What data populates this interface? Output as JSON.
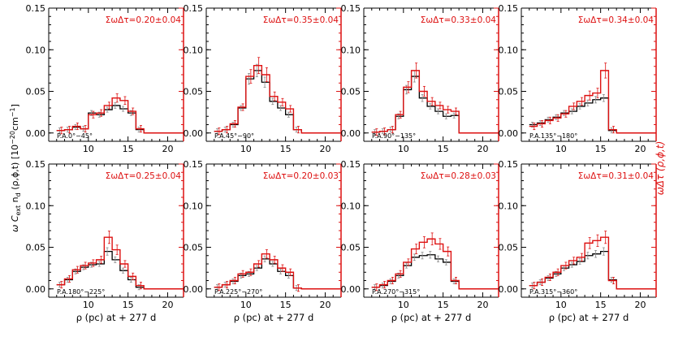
{
  "figure": {
    "ylabel_left": "ω C_ext n_d (ρ,ϕ,t) [10⁻²⁰cm⁻¹]",
    "ylabel_left_parts": {
      "main": "ω  C",
      "sub1": "ext",
      "mid": " n",
      "sub2": "d",
      "tail": " (ρ,ϕ,t) [10",
      "sup": "−20",
      "end": "cm",
      "sup2": "−1",
      "close": "]"
    },
    "ylabel_right": "ωΔτ (ρ,ϕ,t)",
    "xlabel": "ρ (pc) at + 277 d",
    "colors": {
      "red": "#dd1111",
      "black": "#000000",
      "gray": "#8a8a8a"
    }
  },
  "chart_data": [
    {
      "type": "line",
      "pa_label": "P.A.0°−45°",
      "tau_label": "ΣωΔτ=0.20±0.04",
      "xlim": [
        5,
        22
      ],
      "ylim": [
        -0.01,
        0.15
      ],
      "xticks": [
        10,
        15,
        20
      ],
      "yticks": [
        "0.00",
        "0.05",
        "0.10",
        "0.15"
      ],
      "x": [
        6,
        7,
        8,
        9,
        10,
        11,
        12,
        13,
        14,
        15,
        16,
        17,
        22
      ],
      "series": [
        {
          "name": "ωΔτ",
          "color": "red",
          "values": [
            0.003,
            0.004,
            0.008,
            0.005,
            0.022,
            0.024,
            0.033,
            0.042,
            0.039,
            0.026,
            0.005,
            0,
            0
          ]
        },
        {
          "name": "ω C_ext n_d",
          "color": "black",
          "values": [
            0.003,
            0.004,
            0.007,
            0.005,
            0.024,
            0.022,
            0.028,
            0.033,
            0.029,
            0.024,
            0.004,
            0,
            0
          ]
        }
      ]
    },
    {
      "type": "line",
      "pa_label": "P.A.45°−90°",
      "tau_label": "ΣωΔτ=0.35±0.04",
      "xlim": [
        5,
        22
      ],
      "ylim": [
        -0.01,
        0.15
      ],
      "xticks": [
        10,
        15,
        20
      ],
      "yticks": [
        "0.00",
        "0.05",
        "0.10",
        "0.15"
      ],
      "x": [
        6,
        7,
        8,
        9,
        10,
        11,
        12,
        13,
        14,
        15,
        16,
        17,
        22
      ],
      "series": [
        {
          "name": "ωΔτ",
          "color": "red",
          "values": [
            0.002,
            0.004,
            0.011,
            0.031,
            0.068,
            0.081,
            0.07,
            0.044,
            0.037,
            0.029,
            0.004,
            0,
            0
          ]
        },
        {
          "name": "ω C_ext n_d",
          "color": "black",
          "values": [
            0.002,
            0.004,
            0.01,
            0.03,
            0.065,
            0.075,
            0.061,
            0.038,
            0.03,
            0.022,
            0.004,
            0,
            0
          ]
        }
      ]
    },
    {
      "type": "line",
      "pa_label": "P.A.90°−135°",
      "tau_label": "ΣωΔτ=0.33±0.04",
      "xlim": [
        5,
        22
      ],
      "ylim": [
        -0.01,
        0.15
      ],
      "xticks": [
        10,
        15,
        20
      ],
      "yticks": [
        "0.00",
        "0.05",
        "0.10",
        "0.15"
      ],
      "x": [
        6,
        7,
        8,
        9,
        10,
        11,
        12,
        13,
        14,
        15,
        16,
        17,
        22
      ],
      "series": [
        {
          "name": "ωΔτ",
          "color": "red",
          "values": [
            0.001,
            0.002,
            0.004,
            0.022,
            0.055,
            0.075,
            0.05,
            0.038,
            0.033,
            0.028,
            0.026,
            0,
            0
          ]
        },
        {
          "name": "ω C_ext n_d",
          "color": "black",
          "values": [
            0.001,
            0.002,
            0.004,
            0.02,
            0.052,
            0.068,
            0.042,
            0.032,
            0.026,
            0.02,
            0.021,
            0,
            0
          ]
        }
      ]
    },
    {
      "type": "line",
      "pa_label": "P.A.135°−180°",
      "tau_label": "ΣωΔτ=0.34±0.04",
      "xlim": [
        5,
        22
      ],
      "ylim": [
        -0.01,
        0.15
      ],
      "xticks": [
        10,
        15,
        20
      ],
      "yticks": [
        "0.00",
        "0.05",
        "0.10",
        "0.15"
      ],
      "x": [
        6,
        7,
        8,
        9,
        10,
        11,
        12,
        13,
        14,
        15,
        16,
        17,
        22
      ],
      "series": [
        {
          "name": "ωΔτ",
          "color": "red",
          "values": [
            0.008,
            0.011,
            0.015,
            0.018,
            0.023,
            0.032,
            0.038,
            0.045,
            0.048,
            0.075,
            0.004,
            0,
            0
          ]
        },
        {
          "name": "ω C_ext n_d",
          "color": "black",
          "values": [
            0.01,
            0.012,
            0.016,
            0.019,
            0.024,
            0.026,
            0.032,
            0.036,
            0.04,
            0.042,
            0.003,
            0,
            0
          ]
        }
      ]
    },
    {
      "type": "line",
      "pa_label": "P.A.180°−225°",
      "tau_label": "ΣωΔτ=0.25±0.04",
      "xlim": [
        5,
        22
      ],
      "ylim": [
        -0.01,
        0.15
      ],
      "xticks": [
        10,
        15,
        20
      ],
      "yticks": [
        "0.00",
        "0.05",
        "0.10",
        "0.15"
      ],
      "x": [
        6,
        7,
        8,
        9,
        10,
        11,
        12,
        13,
        14,
        15,
        16,
        17,
        22
      ],
      "series": [
        {
          "name": "ωΔτ",
          "color": "red",
          "values": [
            0.005,
            0.012,
            0.023,
            0.028,
            0.031,
            0.035,
            0.062,
            0.047,
            0.03,
            0.015,
            0.004,
            0,
            0
          ]
        },
        {
          "name": "ω C_ext n_d",
          "color": "black",
          "values": [
            0.005,
            0.011,
            0.021,
            0.026,
            0.029,
            0.03,
            0.045,
            0.035,
            0.022,
            0.011,
            0.002,
            0,
            0
          ]
        }
      ]
    },
    {
      "type": "line",
      "pa_label": "P.A.225°−270°",
      "tau_label": "ΣωΔτ=0.20±0.03",
      "xlim": [
        5,
        22
      ],
      "ylim": [
        -0.01,
        0.15
      ],
      "xticks": [
        10,
        15,
        20
      ],
      "yticks": [
        "0.00",
        "0.05",
        "0.10",
        "0.15"
      ],
      "x": [
        6,
        7,
        8,
        9,
        10,
        11,
        12,
        13,
        14,
        15,
        16,
        17,
        22
      ],
      "series": [
        {
          "name": "ωΔτ",
          "color": "red",
          "values": [
            0.002,
            0.005,
            0.01,
            0.018,
            0.02,
            0.03,
            0.042,
            0.035,
            0.025,
            0.02,
            0.001,
            0,
            0
          ]
        },
        {
          "name": "ω C_ext n_d",
          "color": "black",
          "values": [
            0.002,
            0.005,
            0.009,
            0.016,
            0.018,
            0.025,
            0.036,
            0.03,
            0.021,
            0.016,
            0.001,
            0,
            0
          ]
        }
      ]
    },
    {
      "type": "line",
      "pa_label": "P.A.270°−315°",
      "tau_label": "ΣωΔτ=0.28±0.03",
      "xlim": [
        5,
        22
      ],
      "ylim": [
        -0.01,
        0.15
      ],
      "xticks": [
        10,
        15,
        20
      ],
      "yticks": [
        "0.00",
        "0.05",
        "0.10",
        "0.15"
      ],
      "x": [
        6,
        7,
        8,
        9,
        10,
        11,
        12,
        13,
        14,
        15,
        16,
        17,
        22
      ],
      "series": [
        {
          "name": "ωΔτ",
          "color": "red",
          "values": [
            0.002,
            0.005,
            0.01,
            0.018,
            0.032,
            0.048,
            0.056,
            0.06,
            0.054,
            0.045,
            0.01,
            0,
            0
          ]
        },
        {
          "name": "ω C_ext n_d",
          "color": "black",
          "values": [
            0.002,
            0.004,
            0.009,
            0.016,
            0.028,
            0.038,
            0.04,
            0.041,
            0.036,
            0.032,
            0.009,
            0,
            0
          ]
        }
      ]
    },
    {
      "type": "line",
      "pa_label": "P.A.315°−360°",
      "tau_label": "ΣωΔτ=0.31±0.04",
      "xlim": [
        5,
        22
      ],
      "ylim": [
        -0.01,
        0.15
      ],
      "xticks": [
        10,
        15,
        20
      ],
      "yticks": [
        "0.00",
        "0.05",
        "0.10",
        "0.15"
      ],
      "x": [
        6,
        7,
        8,
        9,
        10,
        11,
        12,
        13,
        14,
        15,
        16,
        17,
        22
      ],
      "series": [
        {
          "name": "ωΔτ",
          "color": "red",
          "values": [
            0.004,
            0.008,
            0.014,
            0.02,
            0.028,
            0.034,
            0.038,
            0.055,
            0.058,
            0.062,
            0.01,
            0,
            0
          ]
        },
        {
          "name": "ω C_ext n_d",
          "color": "black",
          "values": [
            0.004,
            0.008,
            0.013,
            0.018,
            0.025,
            0.029,
            0.033,
            0.04,
            0.042,
            0.045,
            0.011,
            0,
            0
          ]
        }
      ]
    }
  ]
}
